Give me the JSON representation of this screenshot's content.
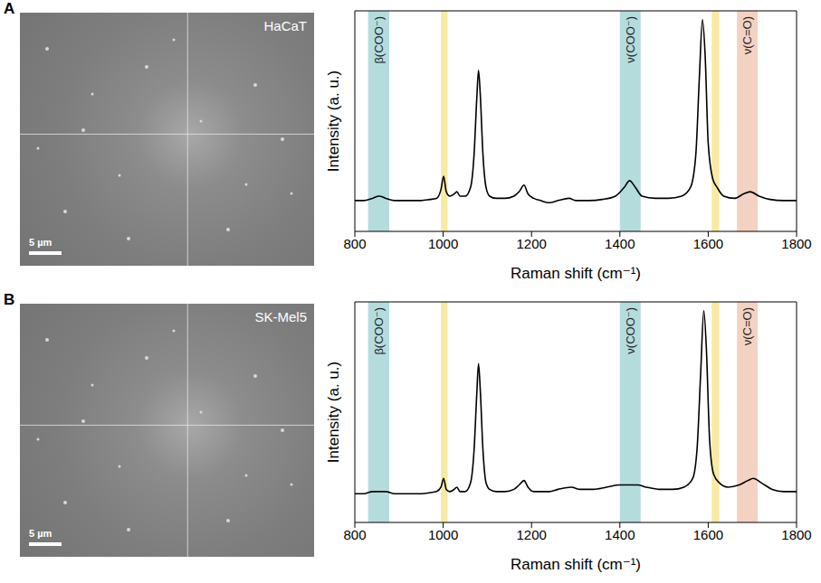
{
  "panels": [
    {
      "letter": "A",
      "image": {
        "label": "HaCaT",
        "scale_bar": "5 µm"
      }
    },
    {
      "letter": "B",
      "image": {
        "label": "SK-Mel5",
        "scale_bar": "5 µm"
      }
    }
  ],
  "chart_data": [
    {
      "type": "line",
      "x_label": "Raman shift (cm⁻¹)",
      "y_label": "Intensity (a. u.)",
      "xlim": [
        800,
        1800
      ],
      "xticks": [
        800,
        1000,
        1200,
        1400,
        1600,
        1800
      ],
      "ylim": [
        0,
        1
      ],
      "tick_labels": "x",
      "grid": false,
      "bands": [
        {
          "x": [
            830,
            878
          ],
          "label": "β(COO⁻)",
          "color": "#b5dcdd"
        },
        {
          "x": [
            995,
            1010
          ],
          "color": "#f7eaa3"
        },
        {
          "x": [
            1400,
            1447
          ],
          "label": "ν(COO⁻)",
          "color": "#b5dcdd"
        },
        {
          "x": [
            1608,
            1625
          ],
          "color": "#f7eaa3"
        },
        {
          "x": [
            1665,
            1712
          ],
          "label": "ν(C=O)",
          "color": "#f4d2c1"
        }
      ],
      "series": [
        {
          "color": "#000000",
          "x": [
            800,
            820,
            840,
            855,
            870,
            890,
            920,
            950,
            970,
            985,
            995,
            1001,
            1007,
            1015,
            1025,
            1031,
            1038,
            1050,
            1062,
            1070,
            1076,
            1080,
            1084,
            1090,
            1097,
            1105,
            1120,
            1140,
            1160,
            1172,
            1183,
            1192,
            1205,
            1220,
            1240,
            1260,
            1285,
            1300,
            1330,
            1360,
            1390,
            1410,
            1422,
            1435,
            1450,
            1480,
            1510,
            1540,
            1560,
            1572,
            1580,
            1587,
            1593,
            1600,
            1610,
            1620,
            1635,
            1660,
            1680,
            1695,
            1715,
            1740,
            1770,
            1800
          ],
          "values": [
            0.14,
            0.14,
            0.15,
            0.16,
            0.15,
            0.14,
            0.14,
            0.14,
            0.145,
            0.15,
            0.19,
            0.25,
            0.18,
            0.16,
            0.17,
            0.18,
            0.16,
            0.16,
            0.2,
            0.35,
            0.6,
            0.73,
            0.62,
            0.35,
            0.2,
            0.16,
            0.15,
            0.15,
            0.16,
            0.18,
            0.21,
            0.17,
            0.15,
            0.14,
            0.13,
            0.14,
            0.15,
            0.14,
            0.14,
            0.145,
            0.16,
            0.2,
            0.23,
            0.2,
            0.16,
            0.15,
            0.15,
            0.16,
            0.2,
            0.35,
            0.7,
            0.96,
            0.8,
            0.4,
            0.24,
            0.2,
            0.16,
            0.15,
            0.17,
            0.18,
            0.16,
            0.145,
            0.14,
            0.14
          ]
        }
      ]
    },
    {
      "type": "line",
      "x_label": "Raman shift (cm⁻¹)",
      "y_label": "Intensity (a. u.)",
      "xlim": [
        800,
        1800
      ],
      "xticks": [
        800,
        1000,
        1200,
        1400,
        1600,
        1800
      ],
      "ylim": [
        0,
        1
      ],
      "tick_labels": "x",
      "grid": false,
      "bands": [
        {
          "x": [
            830,
            878
          ],
          "label": "β(COO⁻)",
          "color": "#b5dcdd"
        },
        {
          "x": [
            995,
            1010
          ],
          "color": "#f7eaa3"
        },
        {
          "x": [
            1400,
            1447
          ],
          "label": "ν(COO⁻)",
          "color": "#b5dcdd"
        },
        {
          "x": [
            1608,
            1625
          ],
          "color": "#f7eaa3"
        },
        {
          "x": [
            1665,
            1712
          ],
          "label": "ν(C=O)",
          "color": "#f4d2c1"
        }
      ],
      "series": [
        {
          "color": "#000000",
          "x": [
            800,
            820,
            840,
            855,
            870,
            890,
            920,
            950,
            970,
            985,
            995,
            1001,
            1007,
            1015,
            1025,
            1031,
            1038,
            1050,
            1062,
            1070,
            1076,
            1080,
            1084,
            1090,
            1097,
            1105,
            1120,
            1140,
            1160,
            1172,
            1183,
            1192,
            1205,
            1220,
            1240,
            1260,
            1290,
            1310,
            1340,
            1370,
            1400,
            1420,
            1440,
            1460,
            1490,
            1520,
            1545,
            1565,
            1575,
            1583,
            1590,
            1596,
            1603,
            1612,
            1625,
            1645,
            1670,
            1690,
            1702,
            1720,
            1745,
            1770,
            1800
          ],
          "values": [
            0.13,
            0.13,
            0.14,
            0.14,
            0.14,
            0.13,
            0.13,
            0.13,
            0.135,
            0.14,
            0.16,
            0.2,
            0.15,
            0.14,
            0.15,
            0.16,
            0.14,
            0.14,
            0.18,
            0.33,
            0.58,
            0.72,
            0.6,
            0.33,
            0.18,
            0.15,
            0.14,
            0.14,
            0.15,
            0.17,
            0.19,
            0.16,
            0.14,
            0.14,
            0.14,
            0.15,
            0.16,
            0.15,
            0.15,
            0.16,
            0.17,
            0.17,
            0.17,
            0.16,
            0.15,
            0.15,
            0.16,
            0.2,
            0.34,
            0.68,
            0.96,
            0.78,
            0.38,
            0.22,
            0.18,
            0.16,
            0.17,
            0.19,
            0.2,
            0.18,
            0.15,
            0.14,
            0.14
          ]
        }
      ]
    }
  ]
}
